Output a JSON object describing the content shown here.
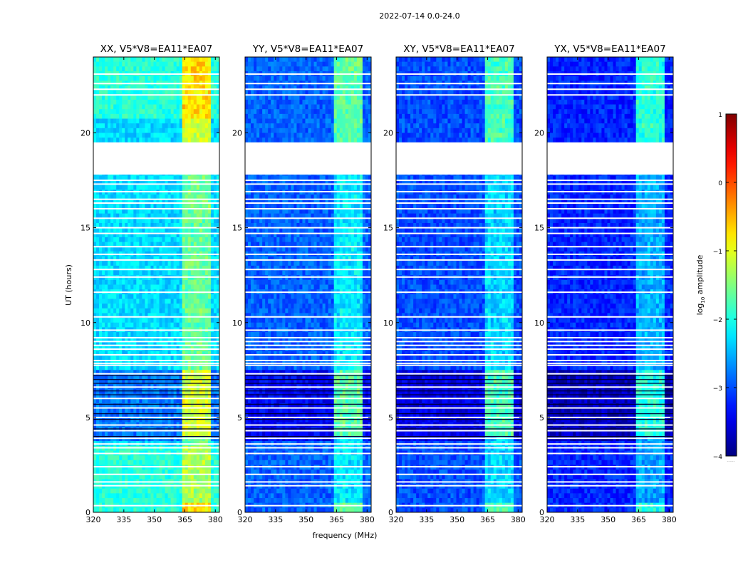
{
  "suptitle": "2022-07-14 0.0-24.0",
  "chart_data": {
    "type": "heatmap",
    "suptitle": "2022-07-14 0.0-24.0",
    "xlabel": "frequency (MHz)",
    "ylabel": "UT (hours)",
    "xlim": [
      320,
      382
    ],
    "ylim": [
      0,
      24
    ],
    "xticks": [
      "320",
      "335",
      "350",
      "365",
      "380"
    ],
    "yticks": [
      "0",
      "5",
      "10",
      "15",
      "20"
    ],
    "panels": [
      {
        "title": "XX, V5*V8=EA11*EA07",
        "mean_level": -2.3,
        "rfi_band_mhz": [
          363,
          378
        ]
      },
      {
        "title": "YY, V5*V8=EA11*EA07",
        "mean_level": -2.9,
        "rfi_band_mhz": [
          363,
          378
        ]
      },
      {
        "title": "XY, V5*V8=EA11*EA07",
        "mean_level": -3.0,
        "rfi_band_mhz": [
          363,
          378
        ]
      },
      {
        "title": "YX, V5*V8=EA11*EA07",
        "mean_level": -3.2,
        "rfi_band_mhz": [
          363,
          378
        ]
      }
    ],
    "flagged_ut_ranges": [
      [
        17.8,
        19.5
      ]
    ],
    "colorbar": {
      "label": "log10 amplitude",
      "min": -4,
      "max": 1,
      "ticks": [
        "1",
        "0",
        "−1",
        "−2",
        "−3",
        "−4"
      ],
      "colormap": "jet",
      "footer": "......"
    }
  },
  "colors": {
    "axis": "#000000",
    "background": "#ffffff",
    "low": "#00007f",
    "high": "#7f0000"
  }
}
